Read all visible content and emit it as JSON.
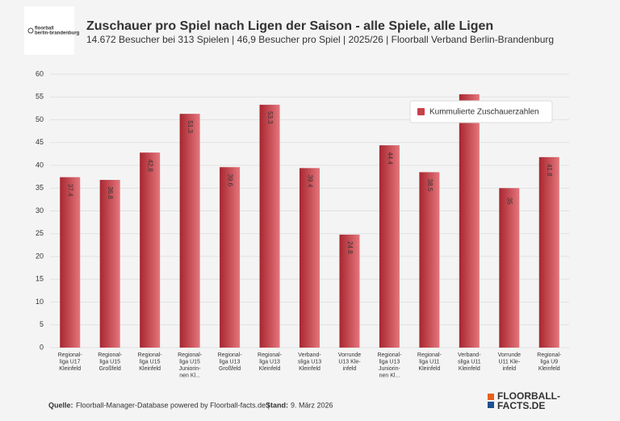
{
  "chart_data": {
    "type": "bar",
    "title": "Zuschauer pro Spiel nach Ligen der Saison - alle Spiele, alle Ligen",
    "subtitle": "14.672 Besucher bei 313 Spielen | 46,9 Besucher pro Spiel | 2025/26 | Floorball Verband Berlin-Brandenburg",
    "categories": [
      "Regional-\nliga U17\nKleinfeld",
      "Regional-\nliga U15\nGroßfeld",
      "Regional-\nliga U15\nKleinfeld",
      "Regional-\nliga U15\nJuniorin-\nnen Kl...",
      "Regional-\nliga U13\nGroßfeld",
      "Regional-\nliga U13\nKleinfeld",
      "Verband-\nsliga U13\nKleinfeld",
      "Vorrunde\nU13 Kle-\ninfeld",
      "Regional-\nliga U13\nJuniorin-\nnen Kl...",
      "Regional-\nliga U11\nKleinfeld",
      "Verband-\nsliga U11\nKleinfeld",
      "Vorrunde\nU11 Kle-\ninfeld",
      "Regional-\nliga U9\nKleinfeld"
    ],
    "series": [
      {
        "name": "Kummulierte Zuschauerzahlen",
        "color": "#c8414a",
        "values": [
          37.4,
          36.8,
          42.8,
          51.3,
          39.6,
          53.3,
          39.4,
          24.8,
          44.4,
          38.5,
          55.6,
          35,
          41.8
        ],
        "value_labels": [
          "37.4",
          "36.8",
          "42.8",
          "51.3",
          "39.6",
          "53.3",
          "39.4",
          "24.8",
          "44.4",
          "38.5",
          null,
          "35",
          "41.8"
        ]
      }
    ],
    "ylim": [
      0,
      60
    ],
    "yticks": [
      0,
      5,
      10,
      15,
      20,
      25,
      30,
      35,
      40,
      45,
      50,
      55,
      60
    ],
    "grid": true,
    "legend": "top-right",
    "source_label": "Quelle:",
    "source": "Floorball-Manager-Database powered by Floorball-facts.de |",
    "date_label": "Stand:",
    "date": "9. März 2026",
    "logo_left": [
      "floorball",
      "berlin-brandenburg"
    ],
    "logo_right": [
      "FLOORBALL-",
      "FACTS.DE"
    ]
  }
}
